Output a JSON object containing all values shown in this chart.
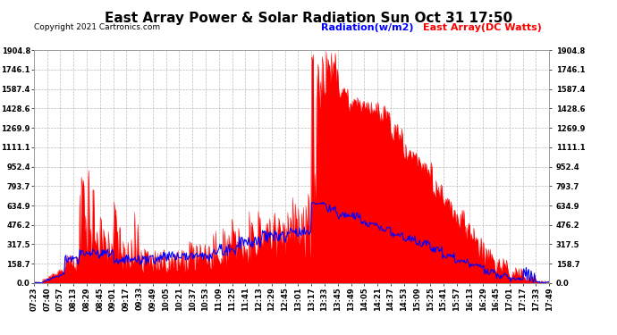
{
  "title": "East Array Power & Solar Radiation Sun Oct 31 17:50",
  "copyright": "Copyright 2021 Cartronics.com",
  "legend_radiation": "Radiation(w/m2)",
  "legend_east_array": "East Array(DC Watts)",
  "legend_radiation_color": "blue",
  "legend_east_array_color": "red",
  "y_tick_labels": [
    "0.0",
    "158.7",
    "317.5",
    "476.2",
    "634.9",
    "793.7",
    "952.4",
    "1111.1",
    "1269.9",
    "1428.6",
    "1587.4",
    "1746.1",
    "1904.8"
  ],
  "y_tick_values": [
    0.0,
    158.7,
    317.5,
    476.2,
    634.9,
    793.7,
    952.4,
    1111.1,
    1269.9,
    1428.6,
    1587.4,
    1746.1,
    1904.8
  ],
  "ymax": 1904.8,
  "background_color": "#ffffff",
  "fill_color": "red",
  "line_color_radiation": "blue",
  "grid_color": "#bbbbbb",
  "x_labels": [
    "07:23",
    "07:40",
    "07:57",
    "08:13",
    "08:29",
    "08:45",
    "09:01",
    "09:17",
    "09:33",
    "09:49",
    "10:05",
    "10:21",
    "10:37",
    "10:53",
    "11:09",
    "11:25",
    "11:41",
    "12:13",
    "12:29",
    "12:45",
    "13:01",
    "13:17",
    "13:33",
    "13:45",
    "13:49",
    "14:05",
    "14:21",
    "14:37",
    "14:53",
    "15:09",
    "15:25",
    "15:41",
    "15:57",
    "16:13",
    "16:29",
    "16:45",
    "17:01",
    "17:17",
    "17:33",
    "17:49"
  ],
  "title_fontsize": 11,
  "axis_fontsize": 6,
  "copyright_fontsize": 6.5,
  "legend_fontsize": 8
}
